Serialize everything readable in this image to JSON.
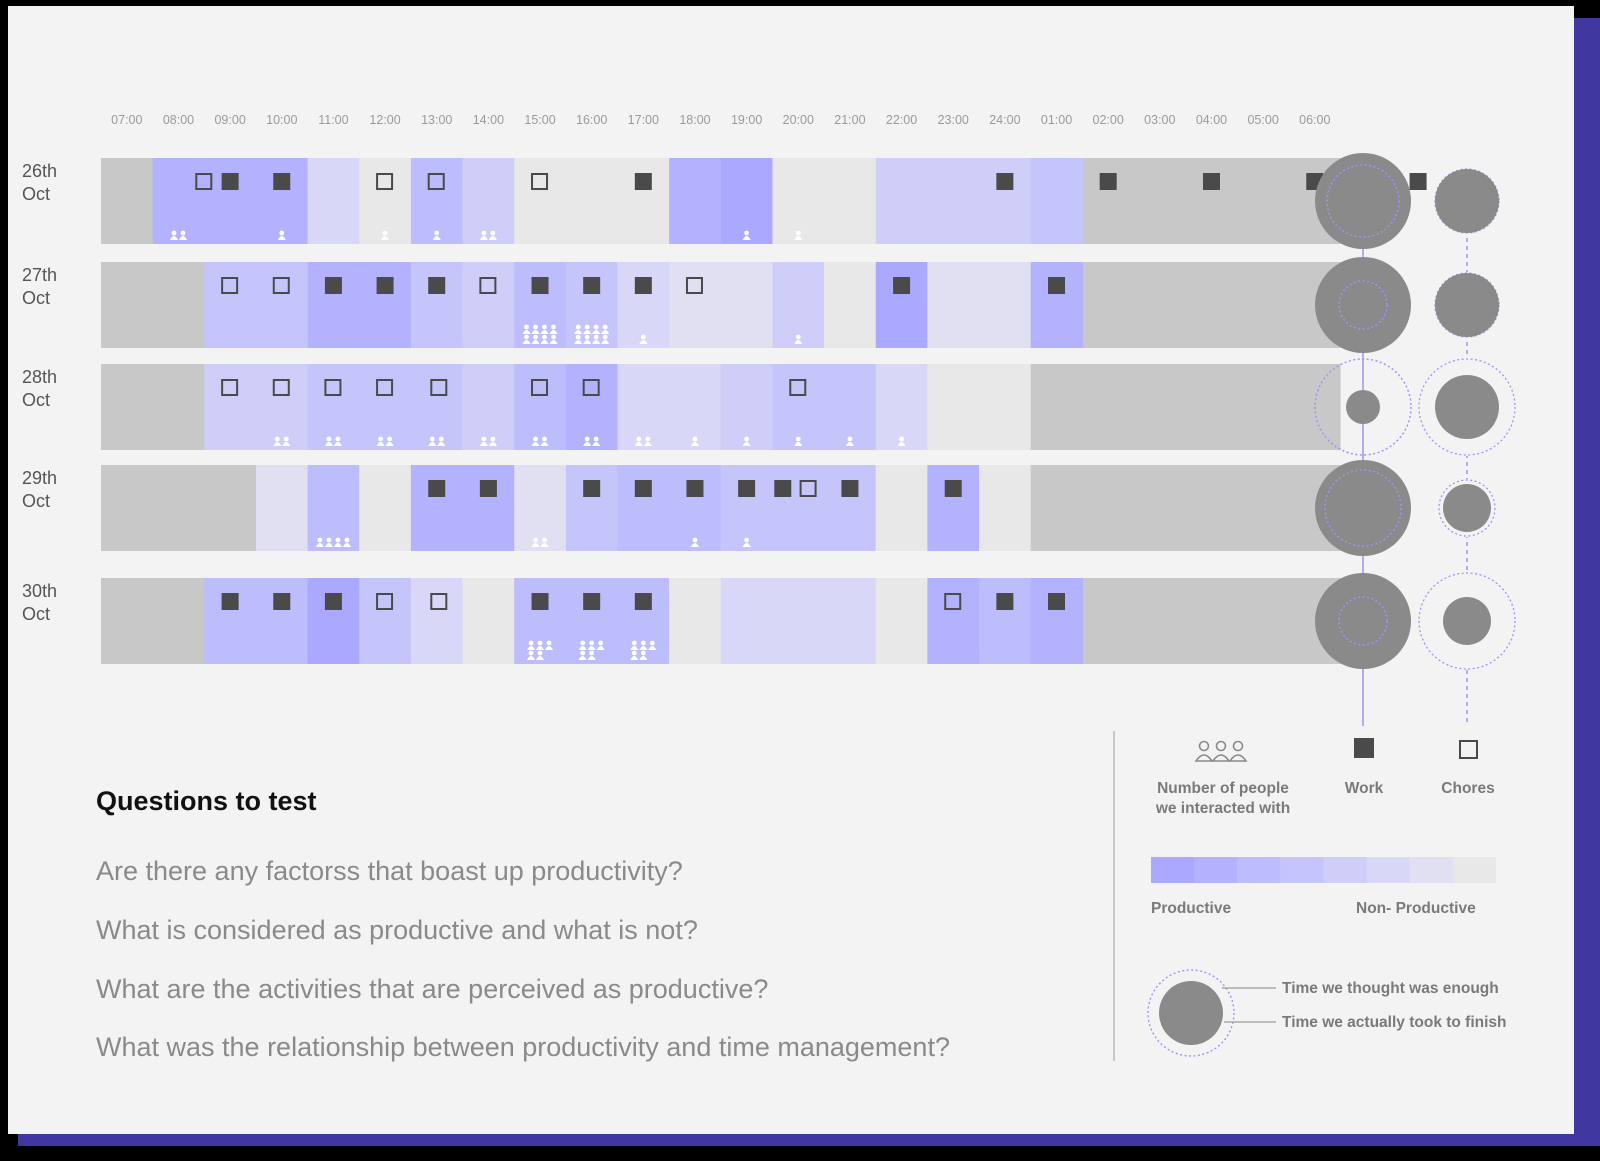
{
  "chart_data": {
    "type": "heatmap",
    "time_labels": [
      "07:00",
      "08:00",
      "09:00",
      "10:00",
      "11:00",
      "12:00",
      "13:00",
      "14:00",
      "15:00",
      "16:00",
      "17:00",
      "18:00",
      "19:00",
      "20:00",
      "21:00",
      "22:00",
      "23:00",
      "24:00",
      "01:00",
      "02:00",
      "03:00",
      "04:00",
      "05:00",
      "06:00"
    ],
    "productivity_scale": [
      "#aaa8ff",
      "#b4b2ff",
      "#bdbcfd",
      "#c6c5fb",
      "#cfcef9",
      "#d8d7f7",
      "#e1e0f3",
      "#e8e8e8"
    ],
    "colors": {
      "sleep": "#c8c8c8",
      "icon": "#4a4a4a",
      "guide": "#9b95f5",
      "circle": "#8a8a8a"
    },
    "days": [
      {
        "label": "26th\nOct",
        "hours": [
          "sleep",
          1,
          1,
          1,
          5,
          7,
          2,
          4,
          7,
          7,
          7,
          1,
          0,
          7,
          7,
          4,
          4,
          4,
          3
        ],
        "work": [
          2.5,
          3.5,
          10.5,
          17.5,
          19.5,
          21.5,
          23.5,
          25.5
        ],
        "chores": [
          2,
          5.5,
          6.5,
          8.5
        ],
        "people": [
          {
            "hour": 1.5,
            "n": 2
          },
          {
            "hour": 3.5,
            "n": 1
          },
          {
            "hour": 5.5,
            "n": 1
          },
          {
            "hour": 6.5,
            "n": 1
          },
          {
            "hour": 7.5,
            "n": 2
          },
          {
            "hour": 12.5,
            "n": 1
          },
          {
            "hour": 13.5,
            "n": 1
          }
        ],
        "planned": 36,
        "actual": 48,
        "chores_planned": 32,
        "chores_actual": 32
      },
      {
        "label": "27th\nOct",
        "hours": [
          "sleep",
          "sleep",
          3,
          3,
          1,
          1,
          3,
          4,
          2,
          3,
          5,
          6,
          6,
          4,
          7,
          0,
          6,
          6,
          1
        ],
        "work": [
          4.5,
          5.5,
          6.5,
          8.5,
          9.5,
          10.5,
          15.5,
          18.5
        ],
        "chores": [
          2.5,
          3.5,
          7.5,
          11.5
        ],
        "people": [
          {
            "hour": 8.5,
            "n": 8
          },
          {
            "hour": 9.5,
            "n": 8
          },
          {
            "hour": 10.5,
            "n": 1
          },
          {
            "hour": 13.5,
            "n": 1
          }
        ],
        "planned": 24,
        "actual": 48,
        "chores_planned": 32,
        "chores_actual": 32
      },
      {
        "label": "28th\nOct",
        "hours": [
          "sleep",
          "sleep",
          4,
          4,
          3,
          3,
          3,
          4,
          2,
          1,
          5,
          5,
          4,
          3,
          3,
          5,
          7,
          7,
          "sleep"
        ],
        "work": [],
        "chores": [
          2.5,
          3.5,
          4.5,
          5.5,
          6.55,
          8.5,
          9.5,
          13.5
        ],
        "people": [
          {
            "hour": 3.5,
            "n": 2
          },
          {
            "hour": 4.5,
            "n": 2
          },
          {
            "hour": 5.5,
            "n": 2
          },
          {
            "hour": 6.5,
            "n": 2
          },
          {
            "hour": 7.5,
            "n": 2
          },
          {
            "hour": 8.5,
            "n": 2
          },
          {
            "hour": 9.5,
            "n": 2
          },
          {
            "hour": 10.5,
            "n": 2
          },
          {
            "hour": 11.5,
            "n": 1
          },
          {
            "hour": 12.5,
            "n": 1
          },
          {
            "hour": 13.5,
            "n": 1
          },
          {
            "hour": 14.5,
            "n": 1
          },
          {
            "hour": 15.5,
            "n": 1
          }
        ],
        "planned": 48,
        "actual": 17,
        "chores_planned": 48,
        "chores_actual": 32
      },
      {
        "label": "29th\nOct",
        "hours": [
          "sleep",
          "sleep",
          "sleep",
          6,
          2,
          7,
          1,
          1,
          6,
          3,
          2,
          2,
          3,
          3,
          3,
          7,
          1,
          7,
          "sleep"
        ],
        "work": [
          6.5,
          7.5,
          9.5,
          10.5,
          11.5,
          12.5,
          13.2,
          14.5,
          16.5
        ],
        "chores": [
          13.7
        ],
        "people": [
          {
            "hour": 4.5,
            "n": 4
          },
          {
            "hour": 8.5,
            "n": 2
          },
          {
            "hour": 11.5,
            "n": 1
          },
          {
            "hour": 12.5,
            "n": 1
          }
        ],
        "planned": 38,
        "actual": 48,
        "chores_planned": 28,
        "chores_actual": 24
      },
      {
        "label": "30th\nOct",
        "hours": [
          "sleep",
          "sleep",
          2,
          2,
          0,
          3,
          5,
          7,
          2,
          2,
          2,
          7,
          5,
          5,
          5,
          7,
          1,
          2,
          1
        ],
        "work": [
          2.5,
          3.5,
          4.5,
          8.5,
          9.5,
          10.5,
          17.5,
          18.5
        ],
        "chores": [
          5.5,
          6.55,
          16.5
        ],
        "people": [
          {
            "hour": 8.5,
            "n": 5
          },
          {
            "hour": 9.5,
            "n": 5
          },
          {
            "hour": 10.5,
            "n": 5
          }
        ],
        "planned": 24,
        "actual": 48,
        "chores_planned": 48,
        "chores_actual": 24
      }
    ]
  },
  "questions": {
    "title": "Questions to test",
    "items": [
      "Are there any factorss that boast up productivity?",
      "What is considered as productive and what is not?",
      "What are the activities that are perceived as productive?",
      "What was the relationship between productivity and time management?"
    ]
  },
  "legend": {
    "people_label_1": "Number of people",
    "people_label_2": "we interacted with",
    "work_label": "Work",
    "chores_label": "Chores",
    "productive_label": "Productive",
    "non_productive_label": "Non- Productive",
    "time_enough_label": "Time we thought was enough",
    "time_actual_label": "Time we actually took to finish"
  }
}
